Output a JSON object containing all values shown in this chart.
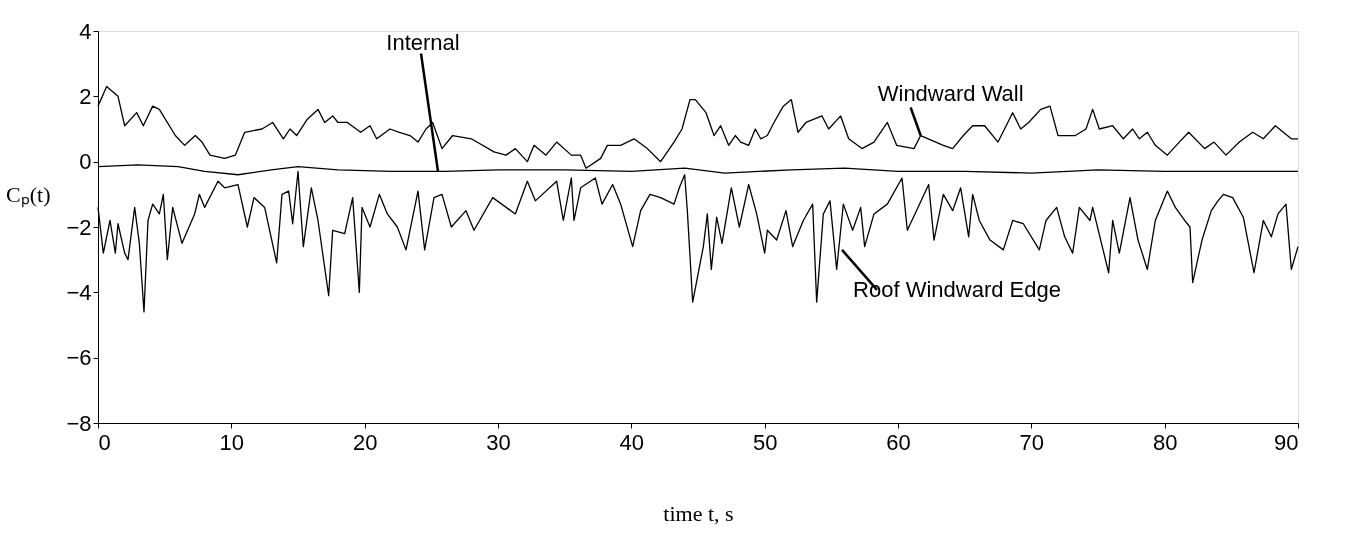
{
  "chart_data": {
    "type": "line",
    "xlabel": "time t, s",
    "ylabel": "Cₚ(t)",
    "xlim": [
      0,
      90
    ],
    "xticks": [
      0,
      10,
      20,
      30,
      40,
      50,
      60,
      70,
      80,
      90
    ],
    "ylim": [
      -8,
      4
    ],
    "yticks": [
      -8,
      -6,
      -4,
      -2,
      0,
      2,
      4
    ],
    "grid": false,
    "legend": false,
    "line_style": "solid",
    "marker": "none",
    "series": [
      {
        "color": "#000000",
        "x": [
          0,
          0.65,
          1.5,
          2.0,
          2.9,
          3.4,
          4.1,
          4.6,
          5.8,
          6.5,
          7.3,
          7.8,
          8.4,
          9.5,
          10.3,
          11.0,
          12.3,
          13.1,
          13.9,
          14.4,
          14.9,
          15.7,
          16.5,
          17.0,
          17.6,
          18.0,
          18.7,
          19.7,
          20.4,
          20.9,
          21.9,
          22.6,
          23.4,
          24.0,
          24.6,
          25.1,
          25.8,
          26.6,
          28.0,
          29.7,
          30.6,
          31.3,
          32.2,
          32.7,
          33.6,
          34.4,
          35.5,
          36.2,
          36.6,
          37.7,
          38.2,
          39.2,
          40.2,
          41.2,
          42.2,
          43.2,
          43.8,
          44.4,
          44.8,
          45.6,
          46.2,
          46.7,
          47.3,
          47.8,
          48.2,
          48.8,
          49.3,
          49.7,
          50.2,
          50.7,
          51.4,
          52.0,
          52.5,
          53.1,
          54.3,
          54.8,
          55.7,
          56.3,
          57.3,
          58.2,
          59.2,
          59.9,
          61.2,
          61.7,
          63.4,
          64.1,
          64.9,
          65.6,
          66.5,
          67.5,
          68.6,
          69.2,
          69.8,
          70.7,
          71.4,
          72.0,
          73.3,
          74.1,
          74.6,
          75.1,
          76.1,
          76.9,
          77.6,
          78.1,
          78.7,
          79.3,
          80.2,
          81.1,
          81.8,
          83.0,
          83.7,
          84.6,
          85.6,
          86.6,
          87.4,
          88.3,
          89.5,
          90
        ],
        "values": [
          1.7,
          2.3,
          2.0,
          1.1,
          1.5,
          1.1,
          1.7,
          1.6,
          0.8,
          0.5,
          0.8,
          0.6,
          0.2,
          0.1,
          0.2,
          0.9,
          1.0,
          1.2,
          0.7,
          1.0,
          0.8,
          1.3,
          1.6,
          1.2,
          1.4,
          1.2,
          1.2,
          0.9,
          1.1,
          0.7,
          1.0,
          0.9,
          0.8,
          0.6,
          1.0,
          1.2,
          0.4,
          0.8,
          0.7,
          0.3,
          0.2,
          0.4,
          0.0,
          0.5,
          0.2,
          0.6,
          0.2,
          0.2,
          -0.2,
          0.1,
          0.5,
          0.5,
          0.7,
          0.4,
          0.0,
          0.6,
          1.0,
          1.9,
          1.9,
          1.5,
          0.8,
          1.1,
          0.5,
          0.8,
          0.6,
          0.5,
          1.0,
          0.7,
          0.8,
          1.2,
          1.7,
          1.9,
          0.9,
          1.2,
          1.4,
          1.0,
          1.4,
          0.7,
          0.4,
          0.6,
          1.2,
          0.5,
          0.4,
          0.8,
          0.5,
          0.4,
          0.8,
          1.1,
          1.1,
          0.6,
          1.5,
          1.0,
          1.2,
          1.6,
          1.7,
          0.8,
          0.8,
          1.0,
          1.6,
          1.0,
          1.1,
          0.7,
          1.0,
          0.7,
          0.9,
          0.5,
          0.2,
          0.6,
          0.9,
          0.4,
          0.6,
          0.2,
          0.6,
          0.9,
          0.7,
          1.1,
          0.7,
          0.7
        ]
      },
      {
        "color": "#000000",
        "x": [
          0,
          3,
          6,
          8,
          10.5,
          13,
          15,
          18,
          22,
          26,
          30,
          35,
          40,
          44,
          47,
          52,
          56,
          60,
          65,
          70,
          75,
          80,
          85,
          90
        ],
        "values": [
          -0.15,
          -0.1,
          -0.15,
          -0.3,
          -0.4,
          -0.25,
          -0.15,
          -0.25,
          -0.3,
          -0.3,
          -0.25,
          -0.25,
          -0.3,
          -0.2,
          -0.35,
          -0.25,
          -0.2,
          -0.3,
          -0.3,
          -0.35,
          -0.25,
          -0.3,
          -0.3,
          -0.3
        ]
      },
      {
        "color": "#000000",
        "x": [
          0,
          0.4,
          0.9,
          1.3,
          1.5,
          2.0,
          2.25,
          2.75,
          3.1,
          3.45,
          3.75,
          4.1,
          4.6,
          4.9,
          5.2,
          5.6,
          6.3,
          7.25,
          7.6,
          8.0,
          9.0,
          9.5,
          10.5,
          11.2,
          11.7,
          12.5,
          13.4,
          13.8,
          14.3,
          14.6,
          15.0,
          15.4,
          16.0,
          16.5,
          17.3,
          17.6,
          18.5,
          19.1,
          19.6,
          19.8,
          20.4,
          21.1,
          21.7,
          22.45,
          23.1,
          24.0,
          24.5,
          25.2,
          25.8,
          26.5,
          27.6,
          28.2,
          29.6,
          31.3,
          32.2,
          32.8,
          34.4,
          34.9,
          35.5,
          35.7,
          36.2,
          37.3,
          37.8,
          38.6,
          39.2,
          40.1,
          40.7,
          41.4,
          42.2,
          43.2,
          43.6,
          44.0,
          44.2,
          44.6,
          45.4,
          45.7,
          46.0,
          46.4,
          46.8,
          47.5,
          48.1,
          48.8,
          49.4,
          50.0,
          50.2,
          50.9,
          51.6,
          52.1,
          52.9,
          53.6,
          53.9,
          54.4,
          54.9,
          55.4,
          55.9,
          56.6,
          57.2,
          57.5,
          58.2,
          59.2,
          60.3,
          60.7,
          61.5,
          62.3,
          62.7,
          63.4,
          64.1,
          64.7,
          65.3,
          65.6,
          66.1,
          66.9,
          67.9,
          68.6,
          69.4,
          70.6,
          71.1,
          71.9,
          72.5,
          73.1,
          73.6,
          74.4,
          74.6,
          75.8,
          76.1,
          76.6,
          77.4,
          78.0,
          78.7,
          79.3,
          80.2,
          80.8,
          81.5,
          81.9,
          82.1,
          82.8,
          83.5,
          84.0,
          84.4,
          85.1,
          85.9,
          86.7,
          87.4,
          88.0,
          88.5,
          89.1,
          89.5,
          90
        ],
        "values": [
          -1.4,
          -2.8,
          -1.8,
          -2.8,
          -1.9,
          -2.8,
          -3.0,
          -1.4,
          -2.5,
          -4.6,
          -1.8,
          -1.3,
          -1.6,
          -1.0,
          -3.0,
          -1.4,
          -2.5,
          -1.6,
          -1.0,
          -1.4,
          -0.6,
          -0.8,
          -0.7,
          -2.0,
          -1.1,
          -1.4,
          -3.1,
          -1.0,
          -0.9,
          -1.9,
          -0.3,
          -2.6,
          -0.8,
          -1.8,
          -4.1,
          -2.1,
          -2.2,
          -1.1,
          -4.0,
          -1.4,
          -2.0,
          -1.0,
          -1.6,
          -2.0,
          -2.7,
          -0.9,
          -2.7,
          -1.1,
          -1.0,
          -2.0,
          -1.5,
          -2.1,
          -1.1,
          -1.6,
          -0.6,
          -1.2,
          -0.6,
          -1.8,
          -0.5,
          -1.8,
          -0.8,
          -0.5,
          -1.3,
          -0.7,
          -1.3,
          -2.6,
          -1.5,
          -1.0,
          -1.1,
          -1.3,
          -0.8,
          -0.4,
          -1.5,
          -4.3,
          -2.6,
          -1.6,
          -3.3,
          -1.7,
          -2.5,
          -0.8,
          -2.0,
          -0.7,
          -1.6,
          -2.8,
          -2.1,
          -2.4,
          -1.5,
          -2.6,
          -1.8,
          -1.3,
          -4.3,
          -1.6,
          -1.2,
          -3.3,
          -1.3,
          -2.1,
          -1.4,
          -2.6,
          -1.6,
          -1.3,
          -0.5,
          -2.1,
          -1.4,
          -0.7,
          -2.4,
          -1.0,
          -1.5,
          -0.8,
          -2.3,
          -1.0,
          -1.8,
          -2.4,
          -2.7,
          -1.8,
          -1.9,
          -2.7,
          -1.8,
          -1.4,
          -2.3,
          -2.8,
          -1.4,
          -1.8,
          -1.4,
          -3.4,
          -1.8,
          -2.8,
          -1.1,
          -2.4,
          -3.3,
          -1.8,
          -0.9,
          -1.4,
          -1.8,
          -2.0,
          -3.7,
          -2.4,
          -1.5,
          -1.2,
          -1.0,
          -1.1,
          -1.7,
          -3.4,
          -1.8,
          -2.3,
          -1.6,
          -1.3,
          -3.3,
          -2.6
        ]
      }
    ],
    "annotations": [
      {
        "text": "Internal",
        "x": 25.5,
        "y": -0.3
      },
      {
        "text": "Windward Wall",
        "x": 61.7,
        "y": 0.8
      },
      {
        "text": "Roof Windward Edge",
        "x": 55.8,
        "y": -2.7
      }
    ]
  }
}
